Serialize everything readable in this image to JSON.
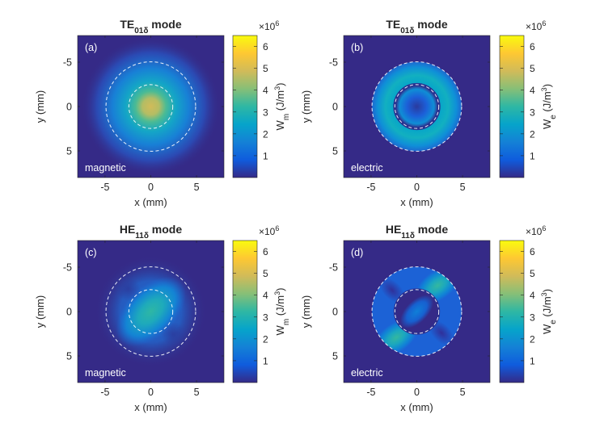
{
  "chart_data": [
    {
      "type": "heatmap",
      "panel": "(a)",
      "title_main": "TE",
      "title_sub": "01δ",
      "title_tail": " mode",
      "field": "magnetic",
      "xlabel": "x (mm)",
      "ylabel": "y (mm)",
      "xlim": [
        -8,
        8
      ],
      "ylim": [
        -8,
        8
      ],
      "xticks": [
        -5,
        0,
        5
      ],
      "yticks": [
        -5,
        0,
        5
      ],
      "dashed_circle_radii_mm": [
        2.4,
        4.9
      ],
      "peak_value": 5.0,
      "colorbar": {
        "label_main": "W",
        "label_sub": "m",
        "label_tail": " (J/m",
        "label_sup": "3",
        "label_close": ")",
        "ticks": [
          1,
          2,
          3,
          4,
          5,
          6
        ],
        "range": [
          0,
          6.5
        ],
        "multiplier": "×10",
        "multiplier_exp": "6"
      }
    },
    {
      "type": "heatmap",
      "panel": "(b)",
      "title_main": "TE",
      "title_sub": "01δ",
      "title_tail": " mode",
      "field": "electric",
      "xlabel": "x (mm)",
      "ylabel": "y (mm)",
      "xlim": [
        -8,
        8
      ],
      "ylim": [
        -8,
        8
      ],
      "xticks": [
        -5,
        0,
        5
      ],
      "yticks": [
        -5,
        0,
        5
      ],
      "dashed_circle_radii_mm": [
        2.4,
        4.9
      ],
      "peak_value": 2.6,
      "colorbar": {
        "label_main": "W",
        "label_sub": "e",
        "label_tail": " (J/m",
        "label_sup": "3",
        "label_close": ")",
        "ticks": [
          1,
          2,
          3,
          4,
          5,
          6
        ],
        "range": [
          0,
          6.5
        ],
        "multiplier": "×10",
        "multiplier_exp": "6"
      }
    },
    {
      "type": "heatmap",
      "panel": "(c)",
      "title_main": "HE",
      "title_sub": "11δ",
      "title_tail": " mode",
      "field": "magnetic",
      "xlabel": "x (mm)",
      "ylabel": "y (mm)",
      "xlim": [
        -8,
        8
      ],
      "ylim": [
        -8,
        8
      ],
      "xticks": [
        -5,
        0,
        5
      ],
      "yticks": [
        -5,
        0,
        5
      ],
      "dashed_circle_radii_mm": [
        2.4,
        4.9
      ],
      "peak_value": 3.0,
      "colorbar": {
        "label_main": "W",
        "label_sub": "m",
        "label_tail": " (J/m",
        "label_sup": "3",
        "label_close": ")",
        "ticks": [
          1,
          2,
          3,
          4,
          5,
          6
        ],
        "range": [
          0,
          6.5
        ],
        "multiplier": "×10",
        "multiplier_exp": "6"
      }
    },
    {
      "type": "heatmap",
      "panel": "(d)",
      "title_main": "HE",
      "title_sub": "11δ",
      "title_tail": " mode",
      "field": "electric",
      "xlabel": "x (mm)",
      "ylabel": "y (mm)",
      "xlim": [
        -8,
        8
      ],
      "ylim": [
        -8,
        8
      ],
      "xticks": [
        -5,
        0,
        5
      ],
      "yticks": [
        -5,
        0,
        5
      ],
      "dashed_circle_radii_mm": [
        2.4,
        4.9
      ],
      "peak_value": 3.0,
      "colorbar": {
        "label_main": "W",
        "label_sub": "e",
        "label_tail": " (J/m",
        "label_sup": "3",
        "label_close": ")",
        "ticks": [
          1,
          2,
          3,
          4,
          5,
          6
        ],
        "range": [
          0,
          6.5
        ],
        "multiplier": "×10",
        "multiplier_exp": "6"
      }
    }
  ],
  "colors": {
    "parula": [
      "#352a87",
      "#0f5cdd",
      "#1481d6",
      "#06a4ca",
      "#2eb7a4",
      "#87bf77",
      "#d1bb59",
      "#fec832",
      "#f9fb0e"
    ],
    "dashed_circle": "#ffffff"
  }
}
